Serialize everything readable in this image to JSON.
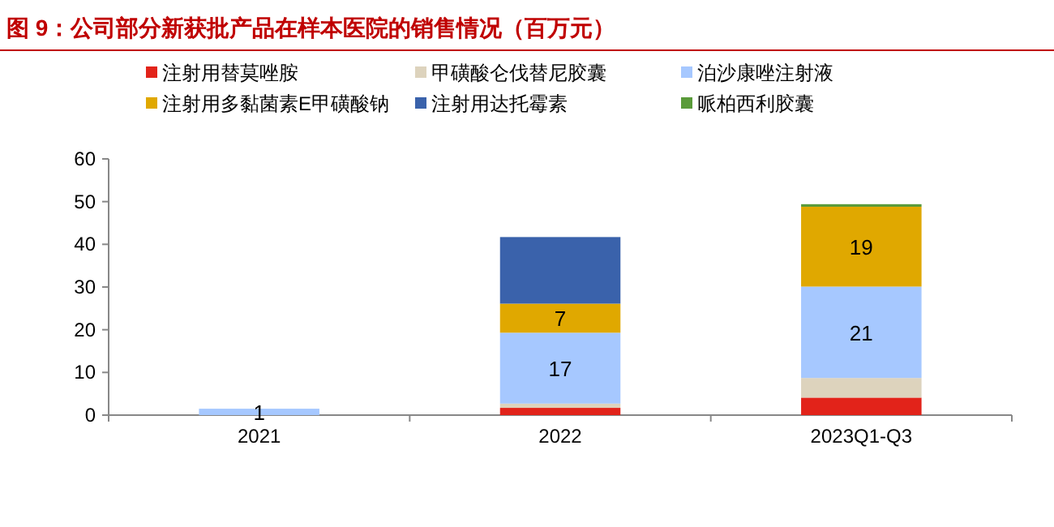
{
  "chart_data": {
    "type": "bar",
    "stacked": true,
    "title": "图 9：公司部分新获批产品在样本医院的销售情况（百万元）",
    "categories": [
      "2021",
      "2022",
      "2023Q1-Q3"
    ],
    "ylim": [
      0,
      60
    ],
    "yticks": [
      0,
      10,
      20,
      30,
      40,
      50,
      60
    ],
    "legend": "top",
    "grid": false,
    "series": [
      {
        "name": "注射用替莫唑胺",
        "color": "#e2231a",
        "values": [
          0,
          1.7,
          4.1
        ]
      },
      {
        "name": "甲磺酸仑伐替尼胶囊",
        "color": "#ddd3bd",
        "values": [
          0,
          1.0,
          4.6
        ]
      },
      {
        "name": "泊沙康唑注射液",
        "color": "#a6c8ff",
        "values": [
          1.5,
          16.6,
          21.4
        ],
        "value_labels": [
          "1",
          "17",
          "21"
        ]
      },
      {
        "name": "注射用多黏菌素E甲磺酸钠",
        "color": "#e0a800",
        "values": [
          0,
          6.8,
          18.7
        ],
        "value_labels": [
          null,
          "7",
          "19"
        ]
      },
      {
        "name": "注射用达托霉素",
        "color": "#3a62ab",
        "values": [
          0,
          15.6,
          0
        ]
      },
      {
        "name": "哌柏西利胶囊",
        "color": "#5a9b3a",
        "values": [
          0,
          0,
          0.6
        ]
      }
    ]
  }
}
